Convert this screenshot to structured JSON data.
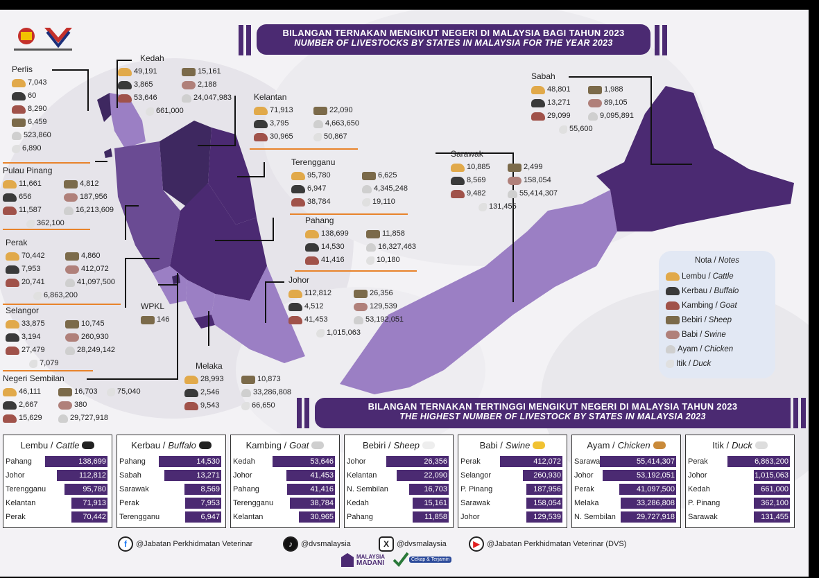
{
  "title": {
    "malay": "BILANGAN TERNAKAN MENGIKUT NEGERI  DI MALAYSIA BAGI TAHUN 2023",
    "english": "NUMBER OF LIVESTOCKS BY STATES IN MALAYSIA FOR THE YEAR 2023"
  },
  "subtitle": {
    "malay": "BILANGAN TERNAKAN TERTINGGI MENGIKUT NEGERI DI MALAYSIA TAHUN 2023",
    "english": "THE HIGHEST NUMBER OF LIVESTOCK BY STATES IN MALAYSIA 2023"
  },
  "notes": {
    "title": "Nota / ",
    "title_en": "Notes",
    "items": [
      {
        "icon": "cattle-icon",
        "ms": "Lembu / ",
        "en": "Cattle"
      },
      {
        "icon": "buffalo-icon",
        "ms": "Kerbau / ",
        "en": "Buffalo"
      },
      {
        "icon": "goat-icon",
        "ms": "Kambing / ",
        "en": "Goat"
      },
      {
        "icon": "sheep-icon",
        "ms": "Bebiri / ",
        "en": "Sheep"
      },
      {
        "icon": "swine-icon",
        "ms": "Babi / ",
        "en": "Swine"
      },
      {
        "icon": "chicken-icon",
        "ms": "Ayam / ",
        "en": "Chicken"
      },
      {
        "icon": "duck-icon",
        "ms": "Itik / ",
        "en": "Duck"
      }
    ]
  },
  "states": {
    "perlis": {
      "name": "Perlis",
      "cattle": "7,043",
      "buffalo": "60",
      "goat": "8,290",
      "sheep": "6,459",
      "chicken": "523,860",
      "duck": "6,890"
    },
    "kedah": {
      "name": "Kedah",
      "cattle": "49,191",
      "sheep": "15,161",
      "buffalo": "3,865",
      "swine": "2,188",
      "goat": "53,646",
      "chicken": "24,047,983",
      "duck": "661,000"
    },
    "kelantan": {
      "name": "Kelantan",
      "cattle": "71,913",
      "sheep": "22,090",
      "buffalo": "3,795",
      "chicken": "4,663,650",
      "goat": "30,965",
      "duck": "50,867"
    },
    "terengganu": {
      "name": "Terengganu",
      "cattle": "95,780",
      "sheep": "6,625",
      "buffalo": "6,947",
      "chicken": "4,345,248",
      "goat": "38,784",
      "duck": "19,110"
    },
    "pahang": {
      "name": "Pahang",
      "cattle": "138,699",
      "sheep": "11,858",
      "buffalo": "14,530",
      "chicken": "16,327,463",
      "goat": "41,416",
      "duck": "10,180"
    },
    "johor": {
      "name": "Johor",
      "cattle": "112,812",
      "sheep": "26,356",
      "buffalo": "4,512",
      "swine": "129,539",
      "goat": "41,453",
      "chicken": "53,192,051",
      "duck": "1,015,063"
    },
    "pulau_pinang": {
      "name": "Pulau Pinang",
      "cattle": "11,661",
      "sheep": "4,812",
      "buffalo": "656",
      "swine": "187,956",
      "goat": "11,587",
      "chicken": "16,213,609",
      "duck": "362,100"
    },
    "perak": {
      "name": "Perak",
      "cattle": "70,442",
      "sheep": "4,860",
      "buffalo": "7,953",
      "swine": "412,072",
      "goat": "20,741",
      "chicken": "41,097,500",
      "duck": "6,863,200"
    },
    "wpkl": {
      "name": "WPKL",
      "sheep": "146"
    },
    "selangor": {
      "name": "Selangor",
      "cattle": "33,875",
      "sheep": "10,745",
      "buffalo": "3,194",
      "swine": "260,930",
      "goat": "27,479",
      "chicken": "28,249,142",
      "duck": "7,079"
    },
    "negeri_sembilan": {
      "name": "Negeri Sembilan",
      "cattle": "46,111",
      "sheep": "16,703",
      "duck": "75,040",
      "buffalo": "2,667",
      "swine": "380",
      "goat": "15,629",
      "chicken": "29,727,918"
    },
    "melaka": {
      "name": "Melaka",
      "cattle": "28,993",
      "sheep": "10,873",
      "buffalo": "2,546",
      "chicken": "33,286,808",
      "goat": "9,543",
      "duck": "66,650"
    },
    "sabah": {
      "name": "Sabah",
      "cattle": "48,801",
      "sheep": "1,988",
      "buffalo": "13,271",
      "swine": "89,105",
      "goat": "29,099",
      "chicken": "9,095,891",
      "duck": "55,600"
    },
    "sarawak": {
      "name": "Sarawak",
      "cattle": "10,885",
      "sheep": "2,499",
      "buffalo": "8,569",
      "swine": "158,054",
      "goat": "9,482",
      "chicken": "55,414,307",
      "duck": "131,455"
    }
  },
  "chart_data": [
    {
      "type": "bar",
      "title": "Lembu / Cattle",
      "title_ms": "Lembu / ",
      "title_en": "Cattle",
      "categories": [
        "Pahang",
        "Johor",
        "Terengganu",
        "Kelantan",
        "Perak"
      ],
      "values": [
        138699,
        112812,
        95780,
        71913,
        70442
      ],
      "labels": [
        "138,699",
        "112,812",
        "95,780",
        "71,913",
        "70,442"
      ]
    },
    {
      "type": "bar",
      "title": "Kerbau / Buffalo",
      "title_ms": "Kerbau / ",
      "title_en": "Buffalo",
      "categories": [
        "Pahang",
        "Sabah",
        "Sarawak",
        "Perak",
        "Terengganu"
      ],
      "values": [
        14530,
        13271,
        8569,
        7953,
        6947
      ],
      "labels": [
        "14,530",
        "13,271",
        "8,569",
        "7,953",
        "6,947"
      ]
    },
    {
      "type": "bar",
      "title": "Kambing / Goat",
      "title_ms": "Kambing / ",
      "title_en": "Goat",
      "categories": [
        "Kedah",
        "Johor",
        "Pahang",
        "Terengganu",
        "Kelantan"
      ],
      "values": [
        53646,
        41453,
        41416,
        38784,
        30965
      ],
      "labels": [
        "53,646",
        "41,453",
        "41,416",
        "38,784",
        "30,965"
      ]
    },
    {
      "type": "bar",
      "title": "Bebiri / Sheep",
      "title_ms": "Bebiri / ",
      "title_en": "Sheep",
      "categories": [
        "Johor",
        "Kelantan",
        "N. Sembilan",
        "Kedah",
        "Pahang"
      ],
      "values": [
        26356,
        22090,
        16703,
        15161,
        11858
      ],
      "labels": [
        "26,356",
        "22,090",
        "16,703",
        "15,161",
        "11,858"
      ]
    },
    {
      "type": "bar",
      "title": "Babi / Swine",
      "title_ms": "Babi / ",
      "title_en": "Swine",
      "categories": [
        "Perak",
        "Selangor",
        "P. Pinang",
        "Sarawak",
        "Johor"
      ],
      "values": [
        412072,
        260930,
        187956,
        158054,
        129539
      ],
      "labels": [
        "412,072",
        "260,930",
        "187,956",
        "158,054",
        "129,539"
      ]
    },
    {
      "type": "bar",
      "title": "Ayam / Chicken",
      "title_ms": "Ayam / ",
      "title_en": "Chicken",
      "categories": [
        "Sarawak",
        "Johor",
        "Perak",
        "Melaka",
        "N. Sembilan"
      ],
      "values": [
        55414307,
        53192051,
        41097500,
        33286808,
        29727918
      ],
      "labels": [
        "55,414,307",
        "53,192,051",
        "41,097,500",
        "33,286,808",
        "29,727,918"
      ]
    },
    {
      "type": "bar",
      "title": "Itik / Duck",
      "title_ms": "Itik / ",
      "title_en": "Duck",
      "categories": [
        "Perak",
        "Johor",
        "Kedah",
        "P. Pinang",
        "Sarawak"
      ],
      "values": [
        6863200,
        1015063,
        661000,
        362100,
        131455
      ],
      "labels": [
        "6,863,200",
        "1,015,063",
        "661,000",
        "362,100",
        "131,455"
      ]
    }
  ],
  "social": {
    "facebook": "@Jabatan Perkhidmatan Veterinar",
    "tiktok": "@dvsmalaysia",
    "x": "@dvsmalaysia",
    "youtube": "@Jabatan Perkhidmatan Veterinar (DVS)"
  },
  "footer": {
    "madani_1": "MALAYSIA",
    "madani_2": "MADANI",
    "badge": "Cekap & Terjamin"
  },
  "colors": {
    "primary": "#4b2a72",
    "map_light": "#9b7fc4",
    "map_mid": "#6a4b93",
    "map_dark": "#3e2860",
    "accent": "#e8832a"
  }
}
